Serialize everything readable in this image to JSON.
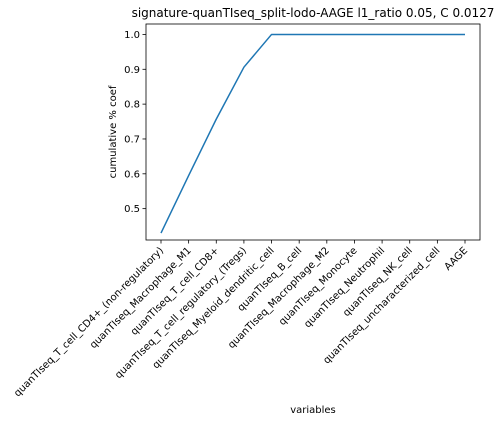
{
  "chart_data": {
    "type": "line",
    "title": "signature-quanTIseq_split-lodo-AAGE l1_ratio 0.05, C 0.0127",
    "xlabel": "variables",
    "ylabel": "cumulative % coef",
    "categories": [
      "quanTIseq_T_cell_CD4+_(non-regulatory)",
      "quanTIseq_Macrophage_M1",
      "quanTIseq_T_cell_CD8+",
      "quanTIseq_T_cell_regulatory_(Tregs)",
      "quanTIseq_Myeloid_dendritic_cell",
      "quanTIseq_B_cell",
      "quanTIseq_Macrophage_M2",
      "quanTIseq_Monocyte",
      "quanTIseq_Neutrophil",
      "quanTIseq_NK_cell",
      "quanTIseq_uncharacterized_cell",
      "AAGE"
    ],
    "series": [
      {
        "values": [
          0.43,
          0.595,
          0.757,
          0.906,
          1.0,
          1.0,
          1.0,
          1.0,
          1.0,
          1.0,
          1.0,
          1.0
        ]
      }
    ],
    "ylim": [
      0.41,
      1.03
    ],
    "yticks": [
      0.5,
      0.6,
      0.7,
      0.8,
      0.9,
      1.0
    ],
    "ytick_labels": [
      "0.5",
      "0.6",
      "0.7",
      "0.8",
      "0.9",
      "1.0"
    ],
    "line_color": "#1f77b4",
    "grid": false
  }
}
